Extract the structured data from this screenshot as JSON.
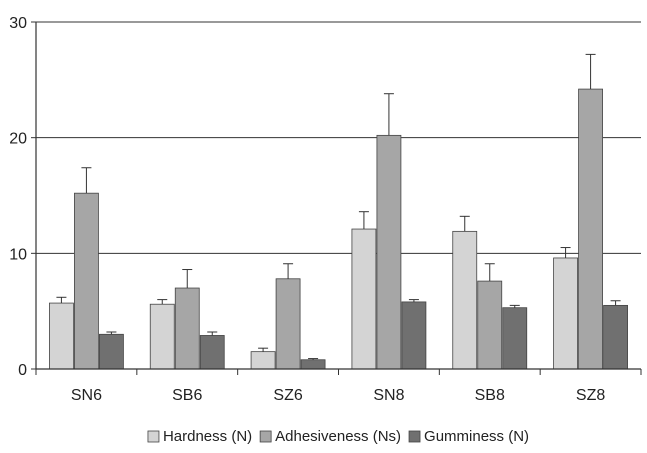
{
  "chart_data": {
    "type": "bar",
    "title": "",
    "xlabel": "",
    "ylabel": "",
    "categories": [
      "SN6",
      "SB6",
      "SZ6",
      "SN8",
      "SB8",
      "SZ8"
    ],
    "ylim": [
      0,
      30
    ],
    "yticks": [
      "0",
      "10",
      "20",
      "30"
    ],
    "grid": "horizontal",
    "legend_position": "bottom",
    "error_bars": "upper",
    "series": [
      {
        "name": "Hardness (N)",
        "color": "#d4d4d4",
        "values": [
          5.7,
          5.6,
          1.5,
          12.1,
          11.9,
          9.6
        ],
        "errors": [
          0.5,
          0.4,
          0.3,
          1.5,
          1.3,
          0.9
        ]
      },
      {
        "name": "Adhesiveness (Ns)",
        "color": "#a6a6a6",
        "values": [
          15.2,
          7.0,
          7.8,
          20.2,
          7.6,
          24.2
        ],
        "errors": [
          2.2,
          1.6,
          1.3,
          3.6,
          1.5,
          3.0
        ]
      },
      {
        "name": "Gumminess (N)",
        "color": "#707070",
        "values": [
          3.0,
          2.9,
          0.8,
          5.8,
          5.3,
          5.5
        ],
        "errors": [
          0.2,
          0.3,
          0.1,
          0.2,
          0.2,
          0.4
        ]
      }
    ]
  }
}
